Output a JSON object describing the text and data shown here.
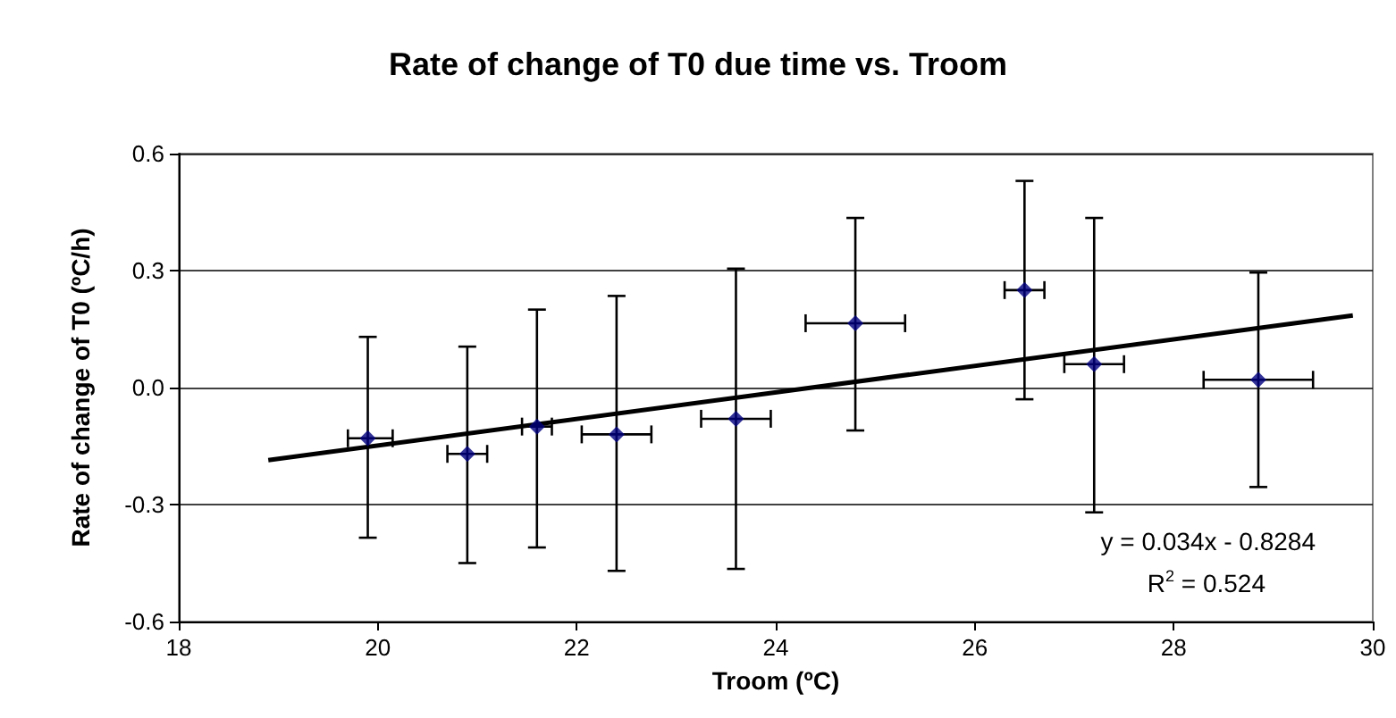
{
  "chart_data": {
    "type": "scatter",
    "title": "Rate of change of T0 due time vs. Troom",
    "xlabel": "Troom (ºC)",
    "ylabel": "Rate of change of T0 (ºC/h)",
    "series": [
      {
        "color": "#000080",
        "marker": "diamond",
        "x": [
          19.9,
          20.9,
          21.6,
          22.4,
          23.6,
          24.8,
          26.5,
          27.2,
          28.85
        ],
        "values": [
          -0.13,
          -0.17,
          -0.1,
          -0.12,
          -0.08,
          0.165,
          0.25,
          0.06,
          0.02
        ],
        "errors": [
          [
            -0.385,
            0.13
          ],
          [
            -0.45,
            0.105
          ],
          [
            -0.41,
            0.2
          ],
          [
            -0.47,
            0.235
          ],
          [
            -0.465,
            0.305
          ],
          [
            -0.11,
            0.435
          ],
          [
            -0.03,
            0.53
          ],
          [
            -0.32,
            0.435
          ],
          [
            -0.255,
            0.295
          ]
        ],
        "xerrors": [
          [
            19.7,
            20.15
          ],
          [
            20.7,
            21.1
          ],
          [
            21.45,
            21.75
          ],
          [
            22.05,
            22.75
          ],
          [
            23.25,
            23.95
          ],
          [
            24.3,
            25.3
          ],
          [
            26.3,
            26.7
          ],
          [
            26.9,
            27.5
          ],
          [
            28.3,
            29.4
          ]
        ]
      },
      {
        "type": "line",
        "color": "#000000",
        "marker": "none",
        "x": [
          18.9,
          29.8
        ],
        "values": [
          -0.186,
          0.185
        ]
      }
    ],
    "xlim": [
      18,
      30
    ],
    "xticks": [
      18,
      20,
      22,
      24,
      26,
      28,
      30
    ],
    "ylim": [
      -0.6,
      0.6
    ],
    "yticks": [
      -0.6,
      -0.3,
      {
        "value": 0,
        "label": "0.0"
      },
      0.3,
      0.6
    ],
    "grid": "y",
    "annotations": [
      "y = 0.034x - 0.8284",
      "R$^{2}$ = 0.524"
    ]
  }
}
